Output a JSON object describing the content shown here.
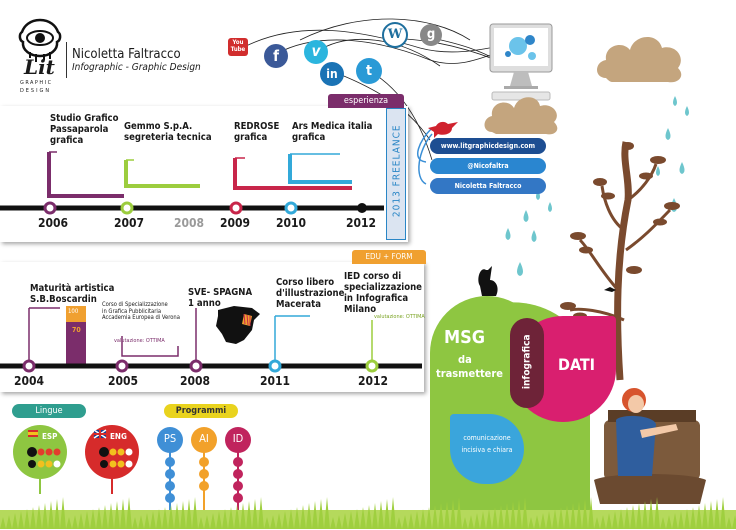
{
  "header": {
    "logo_text": "Lit",
    "logo_sub_1": "GRAPHIC",
    "logo_sub_2": "DESIGN",
    "name": "Nicoletta Faltracco",
    "subtitle": "Infographic - Graphic Design"
  },
  "social": {
    "youtube": "You Tube",
    "vimeo": "v",
    "facebook": "f",
    "linkedin": "in",
    "twitter": "t",
    "wordpress": "W",
    "google": "g"
  },
  "contacts": {
    "website": "www.litgraphicdesign.com",
    "twitter_handle": "@Nicofaltra",
    "linkedin_name": "Nicoletta Faltracco"
  },
  "experience": {
    "tag": "esperienza",
    "freelance": "2013 FREELANCE",
    "entries": [
      {
        "lines": [
          "Studio Grafico",
          "Passaparola",
          "grafica"
        ]
      },
      {
        "lines": [
          "Gemmo S.p.A.",
          "segreteria tecnica"
        ]
      },
      {
        "lines": [
          "REDROSE",
          "grafica"
        ]
      },
      {
        "lines": [
          "Ars Medica italia",
          "grafica"
        ]
      }
    ],
    "years": [
      "2006",
      "2007",
      "2008",
      "2009",
      "2010",
      "2012"
    ]
  },
  "education": {
    "tag": "EDU + FORM",
    "entries": [
      {
        "lines": [
          "Maturità artistica",
          "S.B.Boscardin"
        ]
      },
      {
        "lines": [
          "Corso di Specializzazione",
          "in Grafica Pubblicitaria",
          "Accademia Europea di Verona"
        ]
      },
      {
        "lines": [
          "SVE- SPAGNA",
          "1 anno"
        ]
      },
      {
        "lines": [
          "Corso libero",
          "d'illustrazione",
          "Macerata"
        ]
      },
      {
        "lines": [
          "IED corso di",
          "specializzazione",
          "in Infografica",
          "Milano"
        ]
      }
    ],
    "grade_100": "100",
    "grade_70": "70",
    "valutazione_1": "valutazione: OTTIMA",
    "valutazione_2": "valutazione: OTTIMA",
    "years": [
      "2004",
      "2005",
      "2008",
      "2011",
      "2012"
    ]
  },
  "languages": {
    "tag": "Lingue",
    "items": [
      {
        "label": "ESP",
        "level": 4
      },
      {
        "label": "ENG",
        "level": 3
      }
    ]
  },
  "programs": {
    "tag": "Programmi",
    "items": [
      {
        "label": "PS",
        "color": "#3f8fd6",
        "level": 4
      },
      {
        "label": "AI",
        "color": "#f2a12a",
        "level": 3
      },
      {
        "label": "ID",
        "color": "#c0245d",
        "level": 4
      }
    ]
  },
  "venn": {
    "msg": "MSG",
    "da": "da",
    "trasmettere": "trasmettere",
    "infografica": "infografica",
    "dati": "DATI",
    "note_1": "comunicazione",
    "note_2": "incisiva e chiara"
  },
  "colors": {
    "exp_purple": "#7b2d6b",
    "exp_green": "#9ccd3e",
    "exp_red": "#c8264a",
    "exp_blue": "#33a9d9",
    "edu_orange": "#f0a030",
    "msg_green": "#8ec641",
    "dati_pink": "#d91f6f",
    "lingue_teal": "#2f9e8f",
    "programmi_yellow": "#e9d31e"
  }
}
